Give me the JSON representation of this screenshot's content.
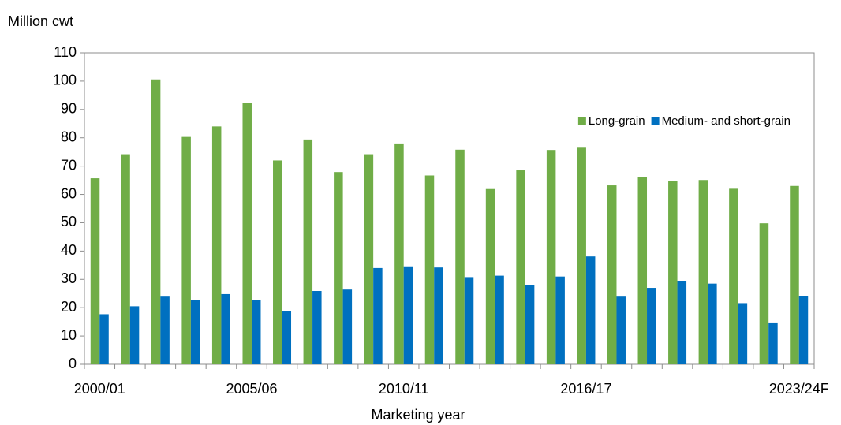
{
  "chart_data": {
    "type": "bar",
    "y_axis_label": "Million cwt",
    "x_axis_label": "Marketing year",
    "categories": [
      "2000/01",
      null,
      null,
      null,
      null,
      "2005/06",
      null,
      null,
      null,
      null,
      "2010/11",
      null,
      null,
      null,
      null,
      null,
      "2016/17",
      null,
      null,
      null,
      null,
      null,
      null,
      "2023/24F"
    ],
    "series": [
      {
        "name": "Long-grain",
        "color": "#70ad47",
        "values": [
          65.7,
          74.2,
          100.6,
          80.3,
          84.0,
          92.2,
          72.0,
          79.4,
          67.9,
          74.2,
          78.0,
          66.7,
          75.8,
          61.9,
          68.5,
          75.7,
          76.5,
          63.2,
          66.2,
          64.8,
          65.1,
          62.0,
          49.8,
          63.0
        ]
      },
      {
        "name": "Medium- and short-grain",
        "color": "#0070c0",
        "values": [
          17.7,
          20.5,
          23.9,
          22.8,
          24.8,
          22.6,
          18.8,
          25.9,
          26.4,
          34.0,
          34.6,
          34.2,
          30.8,
          31.3,
          27.9,
          31.0,
          38.1,
          23.9,
          27.0,
          29.4,
          28.5,
          21.6,
          14.5,
          24.1
        ]
      }
    ],
    "ylim": [
      0,
      110
    ],
    "yticks": [
      0,
      10,
      20,
      30,
      40,
      50,
      60,
      70,
      80,
      90,
      100,
      110
    ],
    "legend": "upper right"
  }
}
